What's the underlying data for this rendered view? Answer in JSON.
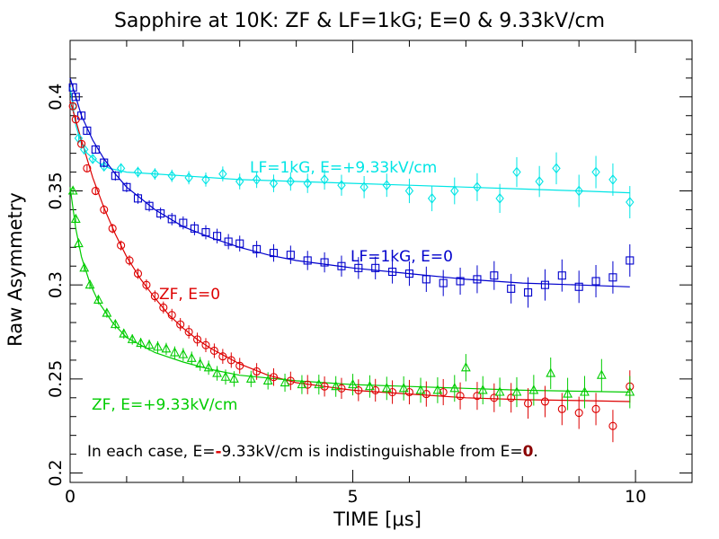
{
  "chart_data": {
    "type": "scatter",
    "title": "Sapphire at 10K: ZF & LF=1kG; E=0 & 9.33kV/cm",
    "xlabel": "TIME [μs]",
    "ylabel": "Raw Asymmetry",
    "xlim": [
      0,
      11
    ],
    "ylim": [
      0.195,
      0.43
    ],
    "x_ticks": [
      0,
      5,
      10
    ],
    "x_tick_labels": [
      "0",
      "5",
      "10"
    ],
    "y_ticks": [
      0.2,
      0.25,
      0.3,
      0.35,
      0.4
    ],
    "y_tick_labels": [
      "0.2",
      "0.25",
      "0.3",
      "0.35",
      "0.4"
    ],
    "grid": false,
    "series": [
      {
        "name": "LF=1kG, E=+9.33kV/cm",
        "color": "#00e5e5",
        "marker": "diamond",
        "x": [
          0.05,
          0.15,
          0.25,
          0.4,
          0.6,
          0.9,
          1.2,
          1.5,
          1.8,
          2.1,
          2.4,
          2.7,
          3.0,
          3.3,
          3.6,
          3.9,
          4.2,
          4.5,
          4.8,
          5.2,
          5.6,
          6.0,
          6.4,
          6.8,
          7.2,
          7.6,
          7.9,
          8.3,
          8.6,
          9.0,
          9.3,
          9.6,
          9.9
        ],
        "y": [
          0.395,
          0.378,
          0.372,
          0.367,
          0.363,
          0.362,
          0.36,
          0.359,
          0.358,
          0.357,
          0.356,
          0.359,
          0.355,
          0.356,
          0.354,
          0.355,
          0.354,
          0.356,
          0.353,
          0.352,
          0.353,
          0.35,
          0.346,
          0.35,
          0.352,
          0.346,
          0.36,
          0.355,
          0.362,
          0.35,
          0.36,
          0.356,
          0.344
        ],
        "fit": {
          "x": [
            0,
            0.1,
            0.2,
            0.3,
            0.5,
            0.7,
            1.0,
            1.5,
            2,
            3,
            4,
            5,
            6,
            7,
            8,
            9,
            9.9
          ],
          "y": [
            0.405,
            0.385,
            0.375,
            0.37,
            0.365,
            0.362,
            0.36,
            0.359,
            0.358,
            0.356,
            0.355,
            0.354,
            0.353,
            0.352,
            0.351,
            0.35,
            0.349
          ]
        }
      },
      {
        "name": "LF=1kG, E=0",
        "color": "#0000cc",
        "marker": "square",
        "x": [
          0.05,
          0.1,
          0.2,
          0.3,
          0.45,
          0.6,
          0.8,
          1.0,
          1.2,
          1.4,
          1.6,
          1.8,
          2.0,
          2.2,
          2.4,
          2.6,
          2.8,
          3.0,
          3.3,
          3.6,
          3.9,
          4.2,
          4.5,
          4.8,
          5.1,
          5.4,
          5.7,
          6.0,
          6.3,
          6.6,
          6.9,
          7.2,
          7.5,
          7.8,
          8.1,
          8.4,
          8.7,
          9.0,
          9.3,
          9.6,
          9.9
        ],
        "y": [
          0.405,
          0.4,
          0.39,
          0.382,
          0.372,
          0.365,
          0.358,
          0.352,
          0.346,
          0.342,
          0.338,
          0.335,
          0.333,
          0.33,
          0.328,
          0.326,
          0.323,
          0.322,
          0.319,
          0.317,
          0.316,
          0.313,
          0.312,
          0.31,
          0.309,
          0.309,
          0.307,
          0.306,
          0.303,
          0.301,
          0.302,
          0.303,
          0.305,
          0.298,
          0.296,
          0.3,
          0.305,
          0.299,
          0.302,
          0.304,
          0.313
        ],
        "fit": {
          "x": [
            0,
            0.2,
            0.4,
            0.6,
            0.8,
            1.0,
            1.5,
            2,
            2.5,
            3,
            3.5,
            4,
            4.5,
            5,
            6,
            7,
            8,
            9,
            9.9
          ],
          "y": [
            0.41,
            0.39,
            0.377,
            0.367,
            0.359,
            0.352,
            0.34,
            0.331,
            0.325,
            0.32,
            0.316,
            0.313,
            0.311,
            0.309,
            0.306,
            0.303,
            0.301,
            0.3,
            0.299
          ]
        }
      },
      {
        "name": "ZF, E=0",
        "color": "#dd0000",
        "marker": "circle",
        "x": [
          0.05,
          0.1,
          0.2,
          0.3,
          0.45,
          0.6,
          0.75,
          0.9,
          1.05,
          1.2,
          1.35,
          1.5,
          1.65,
          1.8,
          1.95,
          2.1,
          2.25,
          2.4,
          2.55,
          2.7,
          2.85,
          3.0,
          3.3,
          3.6,
          3.9,
          4.2,
          4.5,
          4.8,
          5.1,
          5.4,
          5.7,
          6.0,
          6.3,
          6.6,
          6.9,
          7.2,
          7.5,
          7.8,
          8.1,
          8.4,
          8.7,
          9.0,
          9.3,
          9.6,
          9.9
        ],
        "y": [
          0.395,
          0.388,
          0.375,
          0.362,
          0.35,
          0.34,
          0.33,
          0.321,
          0.313,
          0.306,
          0.3,
          0.294,
          0.288,
          0.284,
          0.279,
          0.275,
          0.271,
          0.268,
          0.265,
          0.262,
          0.26,
          0.257,
          0.254,
          0.251,
          0.249,
          0.247,
          0.246,
          0.245,
          0.244,
          0.244,
          0.243,
          0.243,
          0.242,
          0.243,
          0.241,
          0.241,
          0.24,
          0.24,
          0.237,
          0.238,
          0.234,
          0.232,
          0.234,
          0.225,
          0.246
        ],
        "fit": {
          "x": [
            0,
            0.2,
            0.4,
            0.6,
            0.8,
            1.0,
            1.25,
            1.5,
            1.75,
            2,
            2.25,
            2.5,
            2.75,
            3,
            3.5,
            4,
            4.5,
            5,
            6,
            7,
            8,
            9,
            9.9
          ],
          "y": [
            0.398,
            0.377,
            0.357,
            0.341,
            0.327,
            0.315,
            0.303,
            0.293,
            0.284,
            0.277,
            0.271,
            0.266,
            0.262,
            0.258,
            0.252,
            0.248,
            0.246,
            0.244,
            0.242,
            0.24,
            0.239,
            0.2385,
            0.238
          ]
        }
      },
      {
        "name": "ZF, E=+9.33kV/cm",
        "color": "#00cc00",
        "marker": "triangle",
        "x": [
          0.05,
          0.1,
          0.15,
          0.25,
          0.35,
          0.5,
          0.65,
          0.8,
          0.95,
          1.1,
          1.25,
          1.4,
          1.55,
          1.7,
          1.85,
          2.0,
          2.15,
          2.3,
          2.45,
          2.6,
          2.75,
          2.9,
          3.2,
          3.5,
          3.8,
          4.1,
          4.4,
          4.7,
          5.0,
          5.3,
          5.6,
          5.9,
          6.2,
          6.5,
          6.8,
          7.0,
          7.3,
          7.6,
          7.9,
          8.2,
          8.5,
          8.8,
          9.1,
          9.4,
          9.9
        ],
        "y": [
          0.35,
          0.335,
          0.322,
          0.309,
          0.3,
          0.292,
          0.285,
          0.279,
          0.274,
          0.271,
          0.269,
          0.268,
          0.267,
          0.266,
          0.264,
          0.263,
          0.261,
          0.258,
          0.256,
          0.253,
          0.251,
          0.25,
          0.25,
          0.249,
          0.248,
          0.247,
          0.247,
          0.246,
          0.247,
          0.246,
          0.245,
          0.245,
          0.244,
          0.244,
          0.245,
          0.256,
          0.244,
          0.243,
          0.243,
          0.244,
          0.253,
          0.242,
          0.243,
          0.252,
          0.243
        ],
        "fit": {
          "x": [
            0,
            0.1,
            0.2,
            0.35,
            0.5,
            0.75,
            1.0,
            1.5,
            2,
            2.5,
            3,
            4,
            5,
            6,
            7,
            8,
            9,
            9.9
          ],
          "y": [
            0.352,
            0.33,
            0.315,
            0.301,
            0.291,
            0.28,
            0.272,
            0.264,
            0.259,
            0.255,
            0.252,
            0.249,
            0.247,
            0.246,
            0.245,
            0.244,
            0.2435,
            0.243
          ]
        }
      }
    ],
    "annotations": [
      {
        "text": "LF=1kG, E=+9.33kV/cm",
        "color": "#00e5e5"
      },
      {
        "text": "LF=1kG, E=0",
        "color": "#0000cc"
      },
      {
        "text": "ZF, E=0",
        "color": "#dd0000"
      },
      {
        "text": "ZF, E=+9.33kV/cm",
        "color": "#00cc00"
      }
    ],
    "note": {
      "text_before": "In each case, E=",
      "minus": "-",
      "text_mid": "9.33kV/cm is indistinguishable from E=",
      "zero": "0",
      "text_end": ".",
      "minus_color": "#dd0000",
      "zero_color": "#8b0000"
    }
  }
}
